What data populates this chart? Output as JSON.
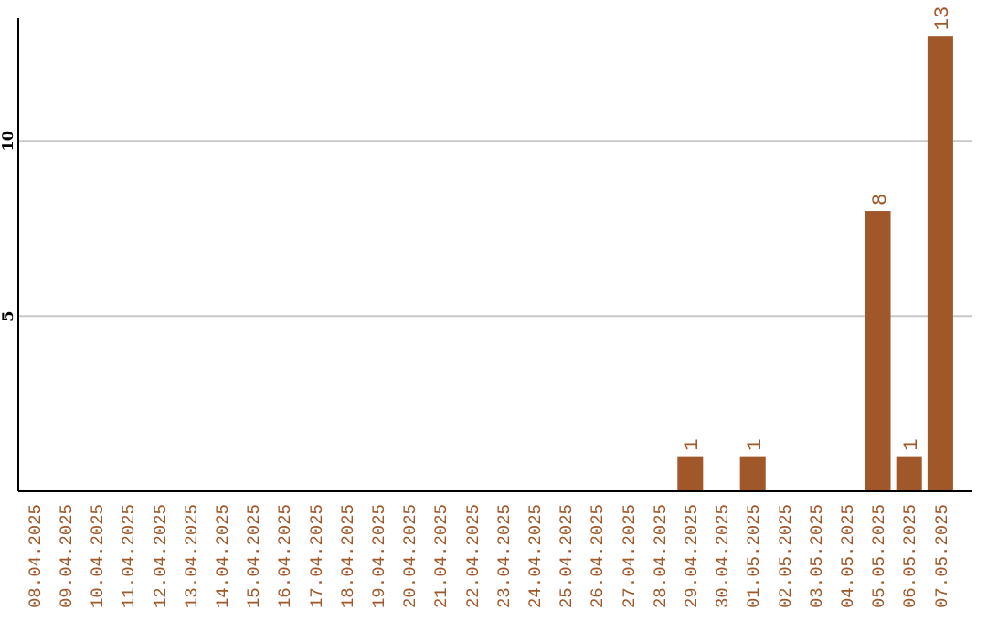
{
  "chart_data": {
    "type": "bar",
    "categories": [
      "08.04.2025",
      "09.04.2025",
      "10.04.2025",
      "11.04.2025",
      "12.04.2025",
      "13.04.2025",
      "14.04.2025",
      "15.04.2025",
      "16.04.2025",
      "17.04.2025",
      "18.04.2025",
      "19.04.2025",
      "20.04.2025",
      "21.04.2025",
      "22.04.2025",
      "23.04.2025",
      "24.04.2025",
      "25.04.2025",
      "26.04.2025",
      "27.04.2025",
      "28.04.2025",
      "29.04.2025",
      "30.04.2025",
      "01.05.2025",
      "02.05.2025",
      "03.05.2025",
      "04.05.2025",
      "05.05.2025",
      "06.05.2025",
      "07.05.2025"
    ],
    "values": [
      0,
      0,
      0,
      0,
      0,
      0,
      0,
      0,
      0,
      0,
      0,
      0,
      0,
      0,
      0,
      0,
      0,
      0,
      0,
      0,
      0,
      1,
      0,
      1,
      0,
      0,
      0,
      8,
      1,
      13
    ],
    "value_labels": [
      null,
      null,
      null,
      null,
      null,
      null,
      null,
      null,
      null,
      null,
      null,
      null,
      null,
      null,
      null,
      null,
      null,
      null,
      null,
      null,
      null,
      "1",
      null,
      "1",
      null,
      null,
      null,
      "8",
      "1",
      "13"
    ],
    "color": "#a0582a",
    "ylim": [
      0,
      13.5
    ],
    "yticks": [
      5,
      10
    ],
    "grid": "y"
  }
}
